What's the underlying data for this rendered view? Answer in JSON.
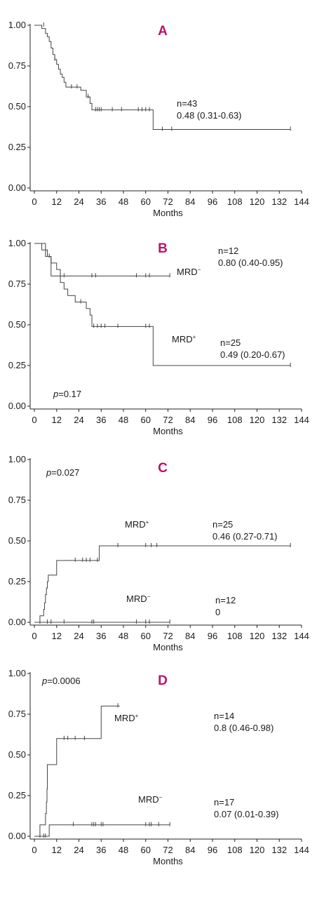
{
  "chart_data": [
    {
      "type": "line",
      "panel_label": "A",
      "xlabel": "Months",
      "ylabel": "",
      "xlim": [
        0,
        144
      ],
      "ylim": [
        0,
        1
      ],
      "x_ticks": [
        "0",
        "12",
        "24",
        "36",
        "48",
        "60",
        "72",
        "84",
        "96",
        "108",
        "120",
        "132",
        "144"
      ],
      "y_ticks": [
        "0.00",
        "0.25",
        "0.50",
        "0.75",
        "1.00"
      ],
      "p_value": null,
      "series": [
        {
          "name": "",
          "annotation": [
            "n=43",
            "0.48 (0.31-0.63)"
          ],
          "steps": [
            [
              0,
              1.0
            ],
            [
              4,
              0.98
            ],
            [
              6,
              0.95
            ],
            [
              7,
              0.93
            ],
            [
              8,
              0.9
            ],
            [
              9,
              0.86
            ],
            [
              10,
              0.82
            ],
            [
              11,
              0.79
            ],
            [
              12,
              0.76
            ],
            [
              13,
              0.73
            ],
            [
              14,
              0.7
            ],
            [
              15,
              0.68
            ],
            [
              16,
              0.65
            ],
            [
              17,
              0.62
            ],
            [
              25,
              0.6
            ],
            [
              28,
              0.56
            ],
            [
              30,
              0.52
            ],
            [
              31,
              0.48
            ],
            [
              64,
              0.36
            ],
            [
              138,
              0.36
            ]
          ],
          "censored": [
            [
              5,
              1.0
            ],
            [
              11,
              0.79
            ],
            [
              20,
              0.62
            ],
            [
              23,
              0.62
            ],
            [
              29,
              0.56
            ],
            [
              33,
              0.48
            ],
            [
              34,
              0.48
            ],
            [
              35,
              0.48
            ],
            [
              36,
              0.48
            ],
            [
              42,
              0.48
            ],
            [
              47,
              0.48
            ],
            [
              56,
              0.48
            ],
            [
              58,
              0.48
            ],
            [
              60,
              0.48
            ],
            [
              62,
              0.48
            ],
            [
              69,
              0.36
            ],
            [
              74,
              0.36
            ],
            [
              138,
              0.36
            ]
          ]
        }
      ]
    },
    {
      "type": "line",
      "panel_label": "B",
      "xlabel": "Months",
      "ylabel": "",
      "xlim": [
        0,
        144
      ],
      "ylim": [
        0,
        1
      ],
      "x_ticks": [
        "0",
        "12",
        "24",
        "36",
        "48",
        "60",
        "72",
        "84",
        "96",
        "108",
        "120",
        "132",
        "144"
      ],
      "y_ticks": [
        "0.00",
        "0.25",
        "0.50",
        "0.75",
        "1.00"
      ],
      "p_value": "=0.17",
      "p_label": "p",
      "series": [
        {
          "name": "MRD",
          "name_sup": "−",
          "annotation": [
            "n=12",
            "0.80 (0.40-0.95)"
          ],
          "steps": [
            [
              0,
              1.0
            ],
            [
              6,
              0.92
            ],
            [
              9,
              0.8
            ],
            [
              73,
              0.8
            ]
          ],
          "censored": [
            [
              14,
              0.8
            ],
            [
              16,
              0.8
            ],
            [
              31,
              0.8
            ],
            [
              33,
              0.8
            ],
            [
              55,
              0.8
            ],
            [
              60,
              0.8
            ],
            [
              62,
              0.8
            ],
            [
              73,
              0.8
            ]
          ]
        },
        {
          "name": "MRD",
          "name_sup": "+",
          "annotation": [
            "n=25",
            "0.49 (0.20-0.67)"
          ],
          "steps": [
            [
              0,
              1.0
            ],
            [
              4,
              0.96
            ],
            [
              7,
              0.92
            ],
            [
              9,
              0.88
            ],
            [
              12,
              0.84
            ],
            [
              14,
              0.76
            ],
            [
              16,
              0.72
            ],
            [
              18,
              0.68
            ],
            [
              22,
              0.64
            ],
            [
              28,
              0.6
            ],
            [
              30,
              0.56
            ],
            [
              31,
              0.49
            ],
            [
              64,
              0.25
            ],
            [
              138,
              0.25
            ]
          ],
          "censored": [
            [
              8,
              0.92
            ],
            [
              25,
              0.64
            ],
            [
              32,
              0.49
            ],
            [
              34,
              0.49
            ],
            [
              36,
              0.49
            ],
            [
              38,
              0.49
            ],
            [
              45,
              0.49
            ],
            [
              60,
              0.49
            ],
            [
              62,
              0.49
            ],
            [
              138,
              0.25
            ]
          ]
        }
      ]
    },
    {
      "type": "line",
      "panel_label": "C",
      "xlabel": "Months",
      "ylabel": "",
      "xlim": [
        0,
        144
      ],
      "ylim": [
        0,
        1
      ],
      "x_ticks": [
        "0",
        "12",
        "24",
        "36",
        "48",
        "60",
        "72",
        "84",
        "96",
        "108",
        "120",
        "132",
        "144"
      ],
      "y_ticks": [
        "0.00",
        "0.25",
        "0.50",
        "0.75",
        "1.00"
      ],
      "p_value": "=0.027",
      "p_label": "p",
      "series": [
        {
          "name": "MRD",
          "name_sup": "+",
          "annotation": [
            "n=25",
            "0.46 (0.27-0.71)"
          ],
          "steps": [
            [
              0,
              0.0
            ],
            [
              3,
              0.04
            ],
            [
              5,
              0.08
            ],
            [
              5.5,
              0.12
            ],
            [
              6,
              0.17
            ],
            [
              6.5,
              0.21
            ],
            [
              7,
              0.25
            ],
            [
              7.5,
              0.29
            ],
            [
              12,
              0.38
            ],
            [
              35,
              0.47
            ],
            [
              138,
              0.47
            ]
          ],
          "censored": [
            [
              22,
              0.38
            ],
            [
              26,
              0.38
            ],
            [
              28,
              0.38
            ],
            [
              30,
              0.38
            ],
            [
              34,
              0.38
            ],
            [
              45,
              0.47
            ],
            [
              60,
              0.47
            ],
            [
              63,
              0.47
            ],
            [
              66,
              0.47
            ],
            [
              138,
              0.47
            ]
          ]
        },
        {
          "name": "MRD",
          "name_sup": "−",
          "annotation": [
            "n=12",
            "0"
          ],
          "steps": [
            [
              0,
              0.0
            ],
            [
              73,
              0.0
            ]
          ],
          "censored": [
            [
              3,
              0.0
            ],
            [
              7,
              0.0
            ],
            [
              9,
              0.0
            ],
            [
              16,
              0.0
            ],
            [
              31,
              0.0
            ],
            [
              32,
              0.0
            ],
            [
              55,
              0.0
            ],
            [
              60,
              0.0
            ],
            [
              62,
              0.0
            ],
            [
              73,
              0.0
            ]
          ]
        }
      ]
    },
    {
      "type": "line",
      "panel_label": "D",
      "xlabel": "Months",
      "ylabel": "",
      "xlim": [
        0,
        144
      ],
      "ylim": [
        0,
        1
      ],
      "x_ticks": [
        "0",
        "12",
        "24",
        "36",
        "48",
        "60",
        "72",
        "84",
        "96",
        "108",
        "120",
        "132",
        "144"
      ],
      "y_ticks": [
        "0.00",
        "0.25",
        "0.50",
        "0.75",
        "1.00"
      ],
      "p_value": "=0.0006",
      "p_label": "p",
      "series": [
        {
          "name": "MRD",
          "name_sup": "+",
          "annotation": [
            "n=14",
            "0.8 (0.46-0.98)"
          ],
          "steps": [
            [
              0,
              0.0
            ],
            [
              3,
              0.07
            ],
            [
              6,
              0.14
            ],
            [
              6.5,
              0.21
            ],
            [
              6.8,
              0.29
            ],
            [
              7,
              0.44
            ],
            [
              12,
              0.6
            ],
            [
              36,
              0.8
            ],
            [
              46,
              0.8
            ]
          ],
          "censored": [
            [
              16,
              0.6
            ],
            [
              18,
              0.6
            ],
            [
              22,
              0.6
            ],
            [
              27,
              0.6
            ],
            [
              45,
              0.8
            ]
          ]
        },
        {
          "name": "MRD",
          "name_sup": "−",
          "annotation": [
            "n=17",
            "0.07 (0.01-0.39)"
          ],
          "steps": [
            [
              0,
              0.0
            ],
            [
              8,
              0.07
            ],
            [
              73,
              0.07
            ]
          ],
          "censored": [
            [
              3,
              0.0
            ],
            [
              5,
              0.0
            ],
            [
              6,
              0.0
            ],
            [
              21,
              0.07
            ],
            [
              31,
              0.07
            ],
            [
              32,
              0.07
            ],
            [
              33,
              0.07
            ],
            [
              36,
              0.07
            ],
            [
              37,
              0.07
            ],
            [
              60,
              0.07
            ],
            [
              62,
              0.07
            ],
            [
              63,
              0.07
            ],
            [
              67,
              0.07
            ],
            [
              73,
              0.07
            ]
          ]
        }
      ]
    }
  ]
}
